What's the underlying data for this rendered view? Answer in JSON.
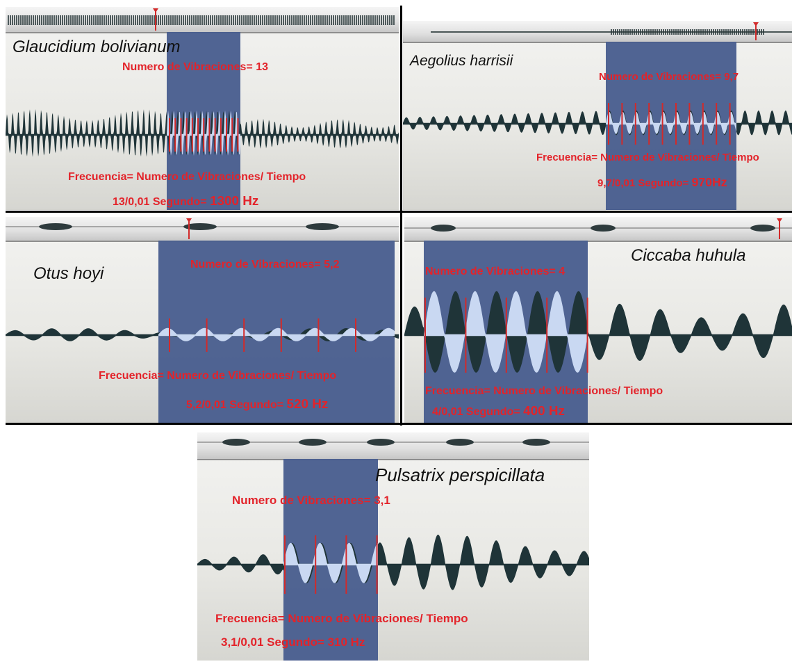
{
  "panels": [
    {
      "species": "Glaucidium bolivianum",
      "vibrations_label": "Numero de Vibraciones= 13",
      "formula_label": "Frecuencia= Numero de Vibraciones/ Tiempo",
      "calc_prefix": "13/0,01 Segundo=",
      "calc_result": "1300 Hz",
      "vibrations": 13,
      "time_s": 0.01,
      "frequency_hz": 1300
    },
    {
      "species": "Aegolius harrisii",
      "vibrations_label": "Numero de Vibraciones= 9,7",
      "formula_label": "Frecuencia= Numero de Vibraciones/ Tiempo",
      "calc_prefix": "9,7/0,01 Segundo=",
      "calc_result": "970Hz",
      "vibrations": 9.7,
      "time_s": 0.01,
      "frequency_hz": 970
    },
    {
      "species": "Otus hoyi",
      "vibrations_label": "Numero de Vibraciones= 5,2",
      "formula_label": "Frecuencia= Numero de Vibraciones/ Tiempo",
      "calc_prefix": "5,2/0,01 Segundo=",
      "calc_result": "520 Hz",
      "vibrations": 5.2,
      "time_s": 0.01,
      "frequency_hz": 520
    },
    {
      "species": "Ciccaba huhula",
      "vibrations_label": "Numero de Vibraciones= 4",
      "formula_label": "Frecuencia= Numero de Vibraciones/ Tiempo",
      "calc_prefix": "4/0,01 Segundo=",
      "calc_result": "400 Hz",
      "vibrations": 4,
      "time_s": 0.01,
      "frequency_hz": 400
    },
    {
      "species": "Pulsatrix perspicillata",
      "vibrations_label": "Numero de Vibraciones= 3,1",
      "formula_label": "Frecuencia= Numero de Vibraciones/ Tiempo",
      "calc_prefix": "3,1/0,01 Segundo=",
      "calc_result": "310 Hz",
      "vibrations": 3.1,
      "time_s": 0.01,
      "frequency_hz": 310
    }
  ],
  "colors": {
    "selection": "#4a5f8f",
    "waveform": "#1f3438",
    "selected_wave": "#c9d8f2",
    "label_red": "#e3232a",
    "marker_red": "#d22a2a"
  }
}
